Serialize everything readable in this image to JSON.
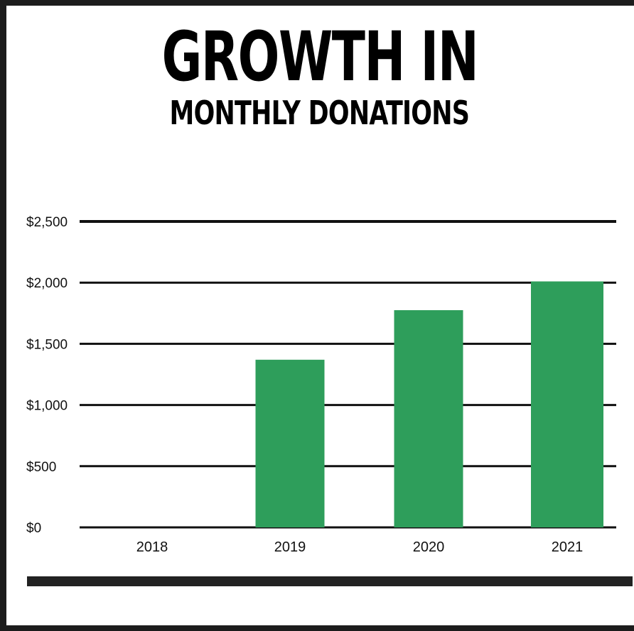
{
  "chart_data": {
    "type": "bar",
    "title": "GROWTH IN",
    "subtitle": "MONTHLY DONATIONS",
    "categories": [
      "2018",
      "2019",
      "2020",
      "2021"
    ],
    "values": [
      0,
      1370,
      1775,
      2010
    ],
    "ylim": [
      0,
      2500
    ],
    "yticks": [
      {
        "value": 0,
        "label": "$0"
      },
      {
        "value": 500,
        "label": "$500"
      },
      {
        "value": 1000,
        "label": "$1,000"
      },
      {
        "value": 1500,
        "label": "$1,500"
      },
      {
        "value": 2000,
        "label": "$2,000"
      },
      {
        "value": 2500,
        "label": "$2,500"
      }
    ],
    "grid": true,
    "bar_color": "#2e9e5b",
    "xlabel": "",
    "ylabel": ""
  }
}
